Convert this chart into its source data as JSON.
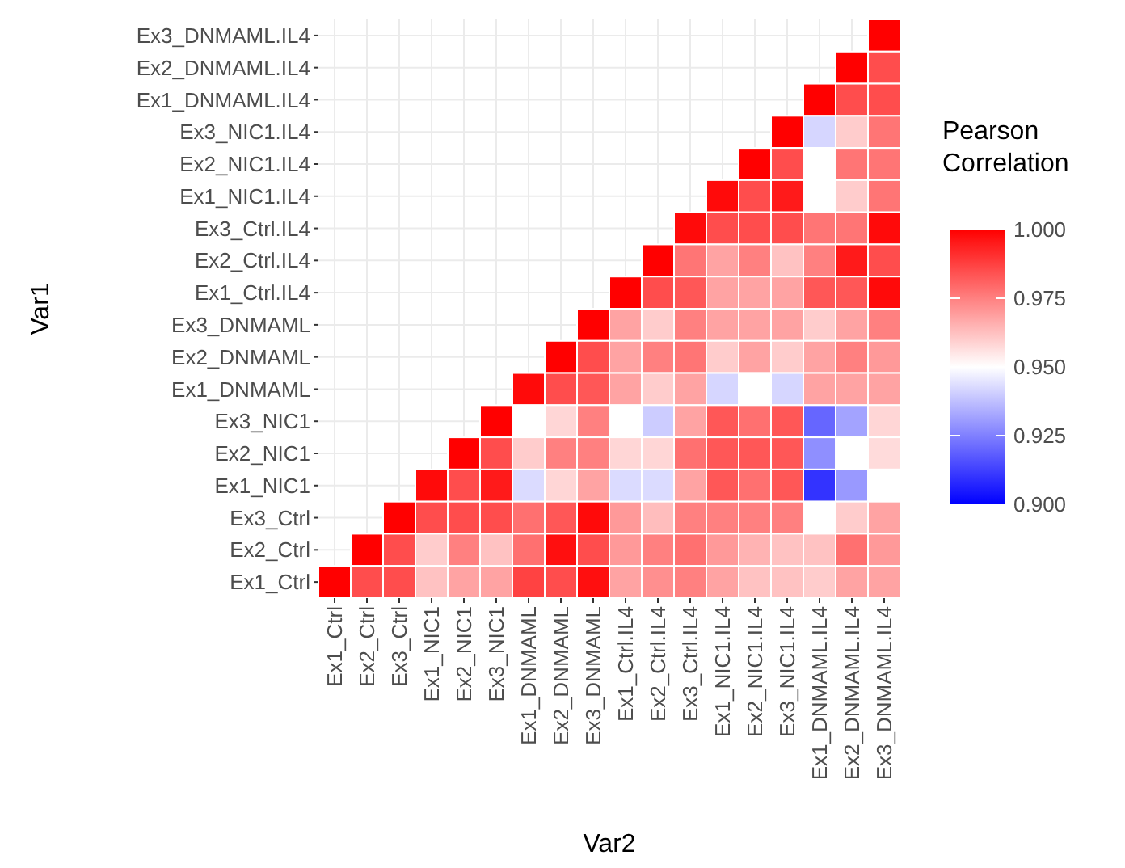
{
  "chart_data": {
    "type": "heatmap",
    "xlabel": "Var2",
    "ylabel": "Var1",
    "legend_title": "Pearson\nCorrelation",
    "categories": [
      "Ex1_Ctrl",
      "Ex2_Ctrl",
      "Ex3_Ctrl",
      "Ex1_NIC1",
      "Ex2_NIC1",
      "Ex3_NIC1",
      "Ex1_DNMAML",
      "Ex2_DNMAML",
      "Ex3_DNMAML",
      "Ex1_Ctrl.IL4",
      "Ex2_Ctrl.IL4",
      "Ex3_Ctrl.IL4",
      "Ex1_NIC1.IL4",
      "Ex2_NIC1.IL4",
      "Ex3_NIC1.IL4",
      "Ex1_DNMAML.IL4",
      "Ex2_DNMAML.IL4",
      "Ex3_DNMAML.IL4"
    ],
    "y_categories": [
      "Ex3_DNMAML.IL4",
      "Ex2_DNMAML.IL4",
      "Ex1_DNMAML.IL4",
      "Ex3_NIC1.IL4",
      "Ex2_NIC1.IL4",
      "Ex1_NIC1.IL4",
      "Ex3_Ctrl.IL4",
      "Ex2_Ctrl.IL4",
      "Ex1_Ctrl.IL4",
      "Ex3_DNMAML",
      "Ex2_DNMAML",
      "Ex1_DNMAML",
      "Ex3_NIC1",
      "Ex2_NIC1",
      "Ex1_NIC1",
      "Ex3_Ctrl",
      "Ex2_Ctrl",
      "Ex1_Ctrl"
    ],
    "cells": [
      [
        null,
        null,
        null,
        null,
        null,
        null,
        null,
        null,
        null,
        null,
        null,
        null,
        null,
        null,
        null,
        null,
        null,
        1
      ],
      [
        null,
        null,
        null,
        null,
        null,
        null,
        null,
        null,
        null,
        null,
        null,
        null,
        null,
        null,
        null,
        null,
        1,
        0.985
      ],
      [
        null,
        null,
        null,
        null,
        null,
        null,
        null,
        null,
        null,
        null,
        null,
        null,
        null,
        null,
        null,
        1,
        0.985,
        0.985
      ],
      [
        null,
        null,
        null,
        null,
        null,
        null,
        null,
        null,
        null,
        null,
        null,
        null,
        null,
        null,
        1,
        0.942,
        0.96,
        0.977
      ],
      [
        null,
        null,
        null,
        null,
        null,
        null,
        null,
        null,
        null,
        null,
        null,
        null,
        null,
        1,
        0.985,
        0.95,
        0.977,
        0.977
      ],
      [
        null,
        null,
        null,
        null,
        null,
        null,
        null,
        null,
        null,
        null,
        null,
        null,
        0.998,
        0.985,
        0.995,
        0.95,
        0.96,
        0.977
      ],
      [
        null,
        null,
        null,
        null,
        null,
        null,
        null,
        null,
        null,
        null,
        null,
        0.998,
        0.985,
        0.985,
        0.985,
        0.977,
        0.977,
        0.998
      ],
      [
        null,
        null,
        null,
        null,
        null,
        null,
        null,
        null,
        null,
        null,
        1,
        0.977,
        0.968,
        0.975,
        0.962,
        0.975,
        0.995,
        0.985
      ],
      [
        null,
        null,
        null,
        null,
        null,
        null,
        null,
        null,
        null,
        1,
        0.985,
        0.983,
        0.968,
        0.968,
        0.968,
        0.983,
        0.983,
        0.998
      ],
      [
        null,
        null,
        null,
        null,
        null,
        null,
        null,
        null,
        1,
        0.968,
        0.96,
        0.975,
        0.968,
        0.968,
        0.968,
        0.96,
        0.968,
        0.975
      ],
      [
        null,
        null,
        null,
        null,
        null,
        null,
        null,
        1,
        0.985,
        0.968,
        0.975,
        0.977,
        0.96,
        0.968,
        0.96,
        0.968,
        0.975,
        0.97
      ],
      [
        null,
        null,
        null,
        null,
        null,
        null,
        0.998,
        0.985,
        0.983,
        0.968,
        0.96,
        0.968,
        0.942,
        0.95,
        0.942,
        0.968,
        0.968,
        0.968
      ],
      [
        null,
        null,
        null,
        null,
        null,
        1,
        0.95,
        0.958,
        0.975,
        0.95,
        0.94,
        0.968,
        0.983,
        0.978,
        0.983,
        0.92,
        0.932,
        0.958
      ],
      [
        null,
        null,
        null,
        null,
        1,
        0.985,
        0.96,
        0.975,
        0.975,
        0.958,
        0.958,
        0.978,
        0.983,
        0.983,
        0.983,
        0.928,
        0.95,
        0.957
      ],
      [
        null,
        null,
        null,
        0.998,
        0.985,
        0.995,
        0.943,
        0.958,
        0.968,
        0.943,
        0.943,
        0.968,
        0.983,
        0.978,
        0.983,
        0.91,
        0.93,
        0.95
      ],
      [
        null,
        null,
        1,
        0.985,
        0.985,
        0.985,
        0.978,
        0.983,
        0.998,
        0.97,
        0.963,
        0.975,
        0.975,
        0.975,
        0.975,
        0.95,
        0.96,
        0.968
      ],
      [
        null,
        1,
        0.985,
        0.96,
        0.975,
        0.962,
        0.978,
        0.997,
        0.985,
        0.97,
        0.975,
        0.978,
        0.97,
        0.965,
        0.962,
        0.962,
        0.978,
        0.97
      ],
      [
        1,
        0.985,
        0.985,
        0.962,
        0.968,
        0.968,
        0.987,
        0.985,
        0.997,
        0.968,
        0.972,
        0.975,
        0.968,
        0.962,
        0.962,
        0.96,
        0.968,
        0.968
      ]
    ],
    "colors": [
      "#0000ff",
      "#ffffff",
      "#ff0000"
    ],
    "clim": [
      0.9,
      1.0
    ],
    "cticks": [
      {
        "value": 0.9,
        "label": "0.900"
      },
      {
        "value": 0.925,
        "label": "0.925"
      },
      {
        "value": 0.95,
        "label": "0.950"
      },
      0.975,
      {
        "value": 1.0,
        "label": "1.000"
      }
    ],
    "grid": true
  }
}
